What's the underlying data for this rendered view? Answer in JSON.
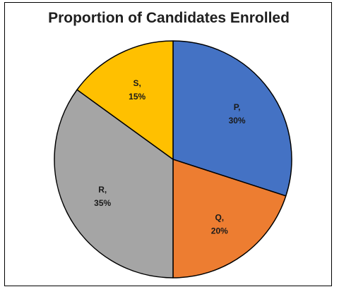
{
  "chart_data": {
    "type": "pie",
    "title": "Proportion of Candidates Enrolled",
    "categories": [
      "P",
      "Q",
      "R",
      "S"
    ],
    "values": [
      30,
      20,
      35,
      15
    ],
    "value_labels": [
      "30%",
      "20%",
      "35%",
      "15%"
    ],
    "slice_labels": [
      "P,",
      "Q,",
      "R,",
      "S,"
    ],
    "colors": [
      "#4472C4",
      "#ED7D31",
      "#A5A5A5",
      "#FFC000"
    ],
    "start_angle_deg": 0,
    "direction": "clockwise",
    "legend": "none"
  }
}
